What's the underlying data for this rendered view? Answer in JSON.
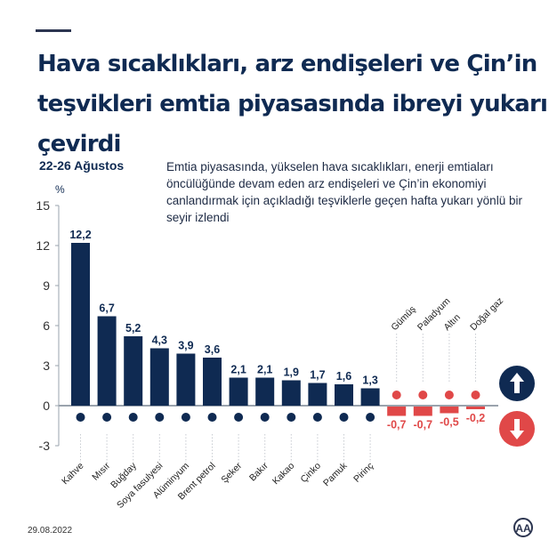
{
  "title": "Hava sıcaklıkları, arz endişeleri ve Çin’in teşvikleri emtia piyasasında ibreyi yukarı çevirdi",
  "period": "22-26 Ağustos",
  "description": "Emtia piyasasında, yükselen hava sıcaklıkları, enerji emtiaları öncülüğünde devam eden arz endişeleri ve Çin’in ekonomiyi canlandırmak için açıkladığı teşviklerle geçen hafta yukarı yönlü bir seyir izlendi",
  "date": "29.08.2022",
  "logo": "AA",
  "colors": {
    "up": "#0f2a52",
    "down": "#e04848",
    "axis": "#9aa3ad"
  },
  "legend": {
    "up_icon": "arrow-up-circle-icon",
    "down_icon": "arrow-down-circle-icon"
  },
  "chart_data": {
    "type": "bar",
    "ylabel": "%",
    "ylim": [
      -3,
      15
    ],
    "yticks": [
      -3,
      0,
      3,
      6,
      9,
      12,
      15
    ],
    "grid": false,
    "categories": [
      "Kahve",
      "Mısır",
      "Buğday",
      "Soya fasulyesi",
      "Alüminyum",
      "Brent petrol",
      "Şeker",
      "Bakır",
      "Kakao",
      "Çinko",
      "Pamuk",
      "Pirinç",
      "Gümüş",
      "Paladyum",
      "Altın",
      "Doğal gaz"
    ],
    "values": [
      12.2,
      6.7,
      5.2,
      4.3,
      3.9,
      3.6,
      2.1,
      2.1,
      1.9,
      1.7,
      1.6,
      1.3,
      -0.7,
      -0.7,
      -0.5,
      -0.2
    ],
    "data_labels": [
      "12,2",
      "6,7",
      "5,2",
      "4,3",
      "3,9",
      "3,6",
      "2,1",
      "2,1",
      "1,9",
      "1,7",
      "1,6",
      "1,3",
      "-0,7",
      "-0,7",
      "-0,5",
      "-0,2"
    ],
    "tick_labels": [
      "-3",
      "0",
      "3",
      "6",
      "9",
      "12",
      "15"
    ]
  }
}
